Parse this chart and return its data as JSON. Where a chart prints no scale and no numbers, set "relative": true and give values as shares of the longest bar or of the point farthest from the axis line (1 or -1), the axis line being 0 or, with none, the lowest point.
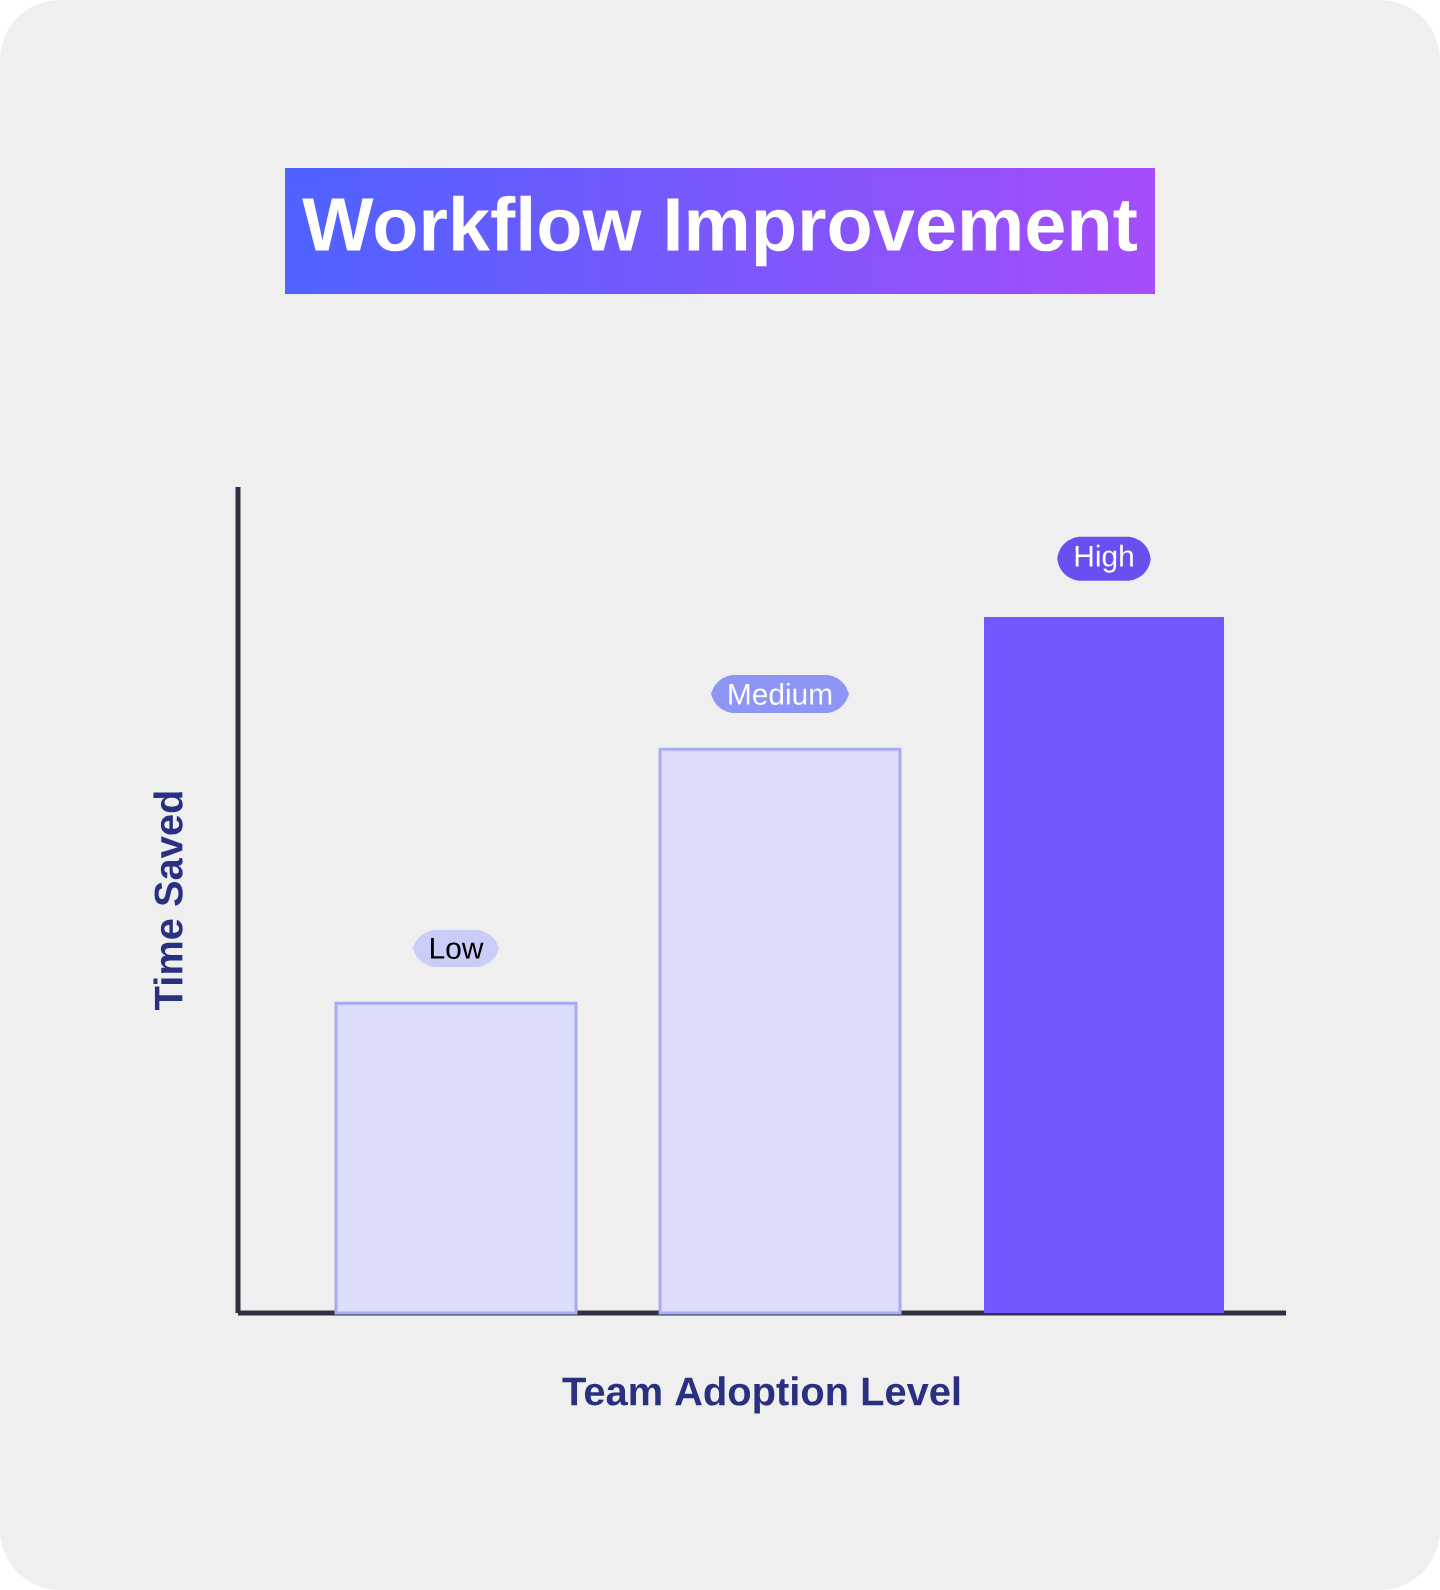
{
  "chart_data": {
    "type": "bar",
    "title": "Workflow Improvement",
    "xlabel": "Team Adoption Level",
    "ylabel": "Time Saved",
    "relative": true,
    "categories": [
      "Low",
      "Medium",
      "High"
    ],
    "values": [
      0.445,
      0.81,
      1
    ],
    "colors": [
      "#dcddfa",
      "#dcddfa",
      "#7357ff"
    ]
  }
}
